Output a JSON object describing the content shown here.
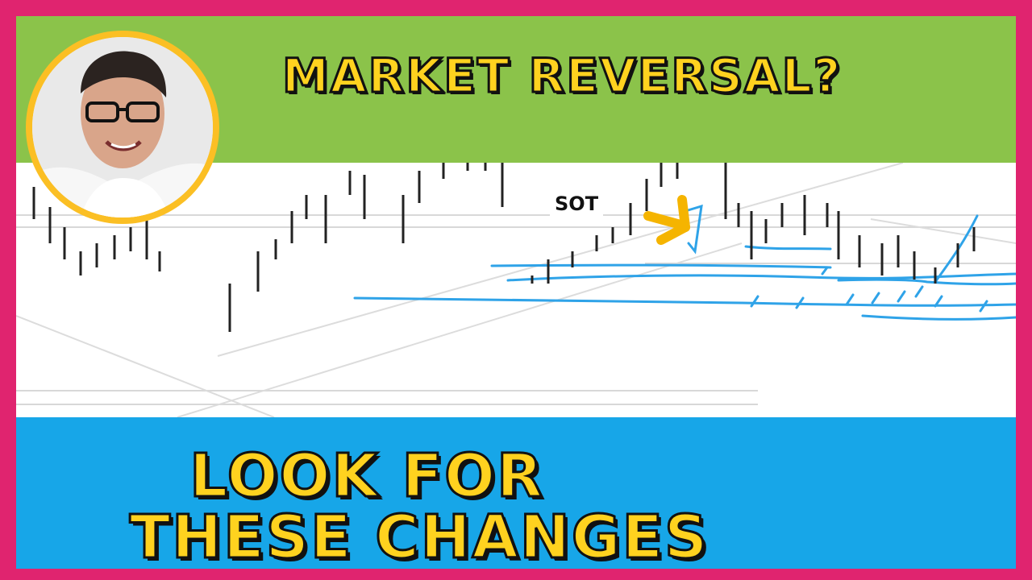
{
  "title": "MARKET REVERSAL?",
  "subtitle_line1": "LOOK FOR",
  "subtitle_line2": "THESE CHANGES",
  "annotation": "SOT",
  "colors": {
    "frame": "#e0246f",
    "top_band": "#8bc34a",
    "bottom_band": "#17a6e8",
    "headline_text": "#ffd21f",
    "avatar_ring": "#fbbf24",
    "arrow": "#f5b400",
    "support_lines": "#2fa3e8",
    "candles": "#222222"
  },
  "icons": {
    "arrow": "arrow-right-icon",
    "avatar": "presenter-avatar"
  }
}
